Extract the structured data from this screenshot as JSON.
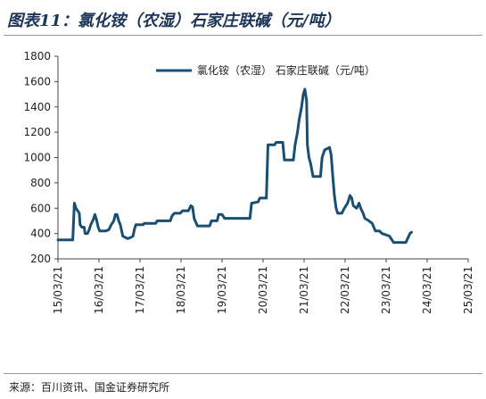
{
  "header": {
    "title": "图表11：氯化铵（农湿）石家庄联碱（元/吨）"
  },
  "footer": {
    "source": "来源：百川资讯、国金证券研究所"
  },
  "chart_data": {
    "type": "line",
    "title": "图表11：氯化铵（农湿）石家庄联碱（元/吨）",
    "xlabel": "",
    "ylabel": "",
    "ylim": [
      200,
      1800
    ],
    "yticks": [
      200,
      400,
      600,
      800,
      1000,
      1200,
      1400,
      1600,
      1800
    ],
    "xticks": [
      "15/03/21",
      "16/03/21",
      "17/03/21",
      "18/03/21",
      "19/03/21",
      "20/03/21",
      "21/03/21",
      "22/03/21",
      "23/03/21",
      "24/03/21",
      "25/03/21"
    ],
    "grid": false,
    "legend_position": "top-right",
    "color": "#1b4f72",
    "series": [
      {
        "name": "氯化铵（农湿） 石家庄联碱（元/吨）",
        "points": [
          [
            2015.22,
            350
          ],
          [
            2015.4,
            350
          ],
          [
            2015.58,
            350
          ],
          [
            2015.62,
            640
          ],
          [
            2015.66,
            600
          ],
          [
            2015.7,
            580
          ],
          [
            2015.74,
            560
          ],
          [
            2015.76,
            470
          ],
          [
            2015.8,
            450
          ],
          [
            2015.86,
            450
          ],
          [
            2015.88,
            400
          ],
          [
            2015.94,
            400
          ],
          [
            2015.98,
            430
          ],
          [
            2016.02,
            470
          ],
          [
            2016.08,
            510
          ],
          [
            2016.12,
            550
          ],
          [
            2016.16,
            510
          ],
          [
            2016.2,
            450
          ],
          [
            2016.24,
            420
          ],
          [
            2016.3,
            420
          ],
          [
            2016.38,
            420
          ],
          [
            2016.46,
            430
          ],
          [
            2016.52,
            470
          ],
          [
            2016.58,
            500
          ],
          [
            2016.62,
            550
          ],
          [
            2016.66,
            550
          ],
          [
            2016.7,
            500
          ],
          [
            2016.74,
            470
          ],
          [
            2016.8,
            380
          ],
          [
            2016.86,
            370
          ],
          [
            2016.92,
            360
          ],
          [
            2017.0,
            370
          ],
          [
            2017.05,
            380
          ],
          [
            2017.08,
            430
          ],
          [
            2017.12,
            470
          ],
          [
            2017.3,
            470
          ],
          [
            2017.32,
            480
          ],
          [
            2017.6,
            480
          ],
          [
            2017.64,
            500
          ],
          [
            2017.96,
            500
          ],
          [
            2018.0,
            540
          ],
          [
            2018.06,
            560
          ],
          [
            2018.2,
            560
          ],
          [
            2018.26,
            580
          ],
          [
            2018.4,
            580
          ],
          [
            2018.46,
            620
          ],
          [
            2018.5,
            610
          ],
          [
            2018.54,
            520
          ],
          [
            2018.62,
            460
          ],
          [
            2018.92,
            460
          ],
          [
            2018.96,
            500
          ],
          [
            2019.1,
            500
          ],
          [
            2019.14,
            550
          ],
          [
            2019.22,
            550
          ],
          [
            2019.28,
            520
          ],
          [
            2019.5,
            520
          ],
          [
            2019.9,
            520
          ],
          [
            2019.94,
            640
          ],
          [
            2020.1,
            650
          ],
          [
            2020.14,
            680
          ],
          [
            2020.3,
            680
          ],
          [
            2020.34,
            1100
          ],
          [
            2020.5,
            1100
          ],
          [
            2020.54,
            1120
          ],
          [
            2020.7,
            1120
          ],
          [
            2020.74,
            980
          ],
          [
            2020.96,
            980
          ],
          [
            2021.0,
            1100
          ],
          [
            2021.06,
            1200
          ],
          [
            2021.1,
            1300
          ],
          [
            2021.16,
            1400
          ],
          [
            2021.2,
            1500
          ],
          [
            2021.24,
            1540
          ],
          [
            2021.28,
            1450
          ],
          [
            2021.3,
            1100
          ],
          [
            2021.34,
            1000
          ],
          [
            2021.38,
            950
          ],
          [
            2021.44,
            850
          ],
          [
            2021.62,
            850
          ],
          [
            2021.66,
            1000
          ],
          [
            2021.72,
            1060
          ],
          [
            2021.78,
            1070
          ],
          [
            2021.84,
            1080
          ],
          [
            2021.88,
            1020
          ],
          [
            2021.92,
            850
          ],
          [
            2021.96,
            700
          ],
          [
            2022.0,
            600
          ],
          [
            2022.04,
            560
          ],
          [
            2022.14,
            560
          ],
          [
            2022.2,
            600
          ],
          [
            2022.28,
            640
          ],
          [
            2022.34,
            700
          ],
          [
            2022.38,
            680
          ],
          [
            2022.42,
            620
          ],
          [
            2022.5,
            600
          ],
          [
            2022.56,
            640
          ],
          [
            2022.6,
            600
          ],
          [
            2022.66,
            560
          ],
          [
            2022.7,
            520
          ],
          [
            2022.8,
            500
          ],
          [
            2022.88,
            480
          ],
          [
            2022.96,
            420
          ],
          [
            2023.06,
            420
          ],
          [
            2023.12,
            400
          ],
          [
            2023.3,
            380
          ],
          [
            2023.4,
            330
          ],
          [
            2023.58,
            330
          ],
          [
            2023.7,
            330
          ],
          [
            2023.8,
            400
          ],
          [
            2023.84,
            410
          ]
        ]
      }
    ]
  }
}
